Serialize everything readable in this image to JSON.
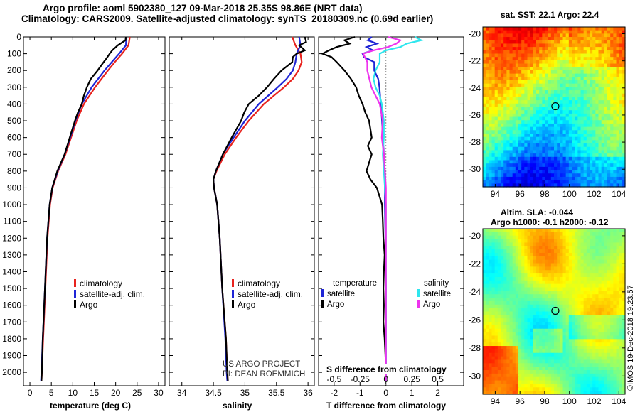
{
  "title": {
    "line1": "Argo profile: aoml 5902380_127 09-Mar-2018 25.35S 98.86E (NRT data)",
    "line2": "Climatology: CARS2009. Satellite-adjusted climatology: synTS_20180309.nc (0.69d earlier)"
  },
  "colors": {
    "climatology": "#e8231e",
    "satellite": "#1f25d6",
    "argo": "#000000",
    "sal_satellite": "#2ee6ee",
    "sal_argo": "#ee33ee"
  },
  "chart_data": [
    {
      "type": "line",
      "name": "temperature",
      "xlabel": "temperature (deg C)",
      "xlim": [
        -1.5,
        31.5
      ],
      "xticks": [
        0,
        5,
        10,
        15,
        20,
        25,
        30
      ],
      "ylim": [
        0,
        2080
      ],
      "yticks": [
        0,
        100,
        200,
        300,
        400,
        500,
        600,
        700,
        800,
        900,
        1000,
        1100,
        1200,
        1300,
        1400,
        1500,
        1600,
        1700,
        1800,
        1900,
        2000
      ],
      "legend": [
        "climatology",
        "satellite-adj. clim.",
        "Argo"
      ],
      "series": [
        {
          "name": "climatology",
          "depth": [
            0,
            50,
            100,
            150,
            200,
            300,
            400,
            500,
            600,
            700,
            800,
            900,
            1000,
            1200,
            1500,
            1800,
            2000,
            2050
          ],
          "values": [
            23.3,
            23.0,
            21.5,
            19.8,
            18.2,
            15.2,
            12.6,
            10.9,
            9.6,
            8.3,
            6.6,
            5.3,
            4.7,
            4.1,
            3.6,
            3.1,
            2.8,
            2.7
          ]
        },
        {
          "name": "satellite-adj. clim.",
          "depth": [
            0,
            50,
            100,
            150,
            200,
            300,
            400,
            500,
            600,
            700,
            800,
            900,
            1000,
            1200,
            1500,
            1800,
            2000,
            2050
          ],
          "values": [
            22.5,
            22.4,
            20.8,
            19.1,
            17.4,
            14.4,
            12.1,
            10.6,
            9.4,
            8.1,
            6.5,
            5.2,
            4.6,
            4.0,
            3.5,
            3.0,
            2.7,
            2.6
          ]
        },
        {
          "name": "Argo",
          "depth": [
            0,
            20,
            50,
            80,
            100,
            130,
            160,
            200,
            250,
            300,
            350,
            400,
            450,
            500,
            600,
            700,
            800,
            900,
            1000,
            1200,
            1500,
            1800,
            2000,
            2050
          ],
          "values": [
            22.4,
            22.3,
            20.5,
            19.2,
            18.6,
            17.8,
            16.9,
            15.8,
            14.2,
            13.3,
            12.6,
            12.1,
            11.2,
            10.5,
            9.3,
            8.1,
            6.4,
            5.2,
            4.6,
            4.0,
            3.5,
            3.0,
            2.8,
            2.7
          ]
        }
      ]
    },
    {
      "type": "line",
      "name": "salinity",
      "xlabel": "salinity",
      "xlim": [
        33.8,
        36.1
      ],
      "xticks": [
        34,
        34.5,
        35,
        35.5,
        36
      ],
      "xtick_labels": [
        "34",
        "34.5",
        "35",
        "35.5",
        "36"
      ],
      "ylim": [
        0,
        2080
      ],
      "legend": [
        "climatology",
        "satellite-adj. clim.",
        "Argo"
      ],
      "series": [
        {
          "name": "climatology",
          "depth": [
            0,
            50,
            100,
            150,
            200,
            250,
            300,
            400,
            500,
            600,
            700,
            800,
            850,
            900,
            1000,
            1200,
            1500,
            1800,
            2000,
            2050
          ],
          "values": [
            35.75,
            35.8,
            35.88,
            35.9,
            35.85,
            35.76,
            35.62,
            35.3,
            35.06,
            34.86,
            34.68,
            34.55,
            34.5,
            34.51,
            34.56,
            34.6,
            34.64,
            34.7,
            34.72,
            34.73
          ]
        },
        {
          "name": "satellite-adj. clim.",
          "depth": [
            0,
            50,
            100,
            150,
            200,
            250,
            300,
            400,
            500,
            600,
            700,
            800,
            850,
            900,
            1000,
            1200,
            1500,
            1800,
            2000,
            2050
          ],
          "values": [
            35.86,
            35.88,
            35.82,
            35.8,
            35.76,
            35.66,
            35.52,
            35.22,
            35.0,
            34.82,
            34.65,
            34.54,
            34.5,
            34.51,
            34.56,
            34.6,
            34.64,
            34.69,
            34.71,
            34.72
          ]
        },
        {
          "name": "Argo",
          "depth": [
            0,
            30,
            50,
            80,
            100,
            120,
            150,
            200,
            250,
            300,
            350,
            400,
            450,
            500,
            600,
            700,
            800,
            850,
            900,
            1000,
            1200,
            1500,
            1800,
            2000,
            2050
          ],
          "values": [
            35.95,
            35.97,
            35.86,
            35.95,
            35.82,
            35.76,
            35.75,
            35.58,
            35.46,
            35.35,
            35.22,
            35.06,
            34.99,
            34.94,
            34.79,
            34.65,
            34.54,
            34.5,
            34.51,
            34.56,
            34.6,
            34.64,
            34.7,
            34.72,
            34.73
          ]
        }
      ]
    },
    {
      "type": "line",
      "name": "difference from climatology",
      "xlabel": "T difference from climatology",
      "xlabel_top": "S difference from climatology",
      "xlim": [
        -2.6,
        3.0
      ],
      "xticks": [
        -2,
        -1,
        0,
        1,
        2
      ],
      "s_xticks": [
        -0.5,
        -0.25,
        0,
        0.25,
        0.5
      ],
      "s_tick_labels": [
        "-0.5",
        "-0.25",
        "0",
        "0.25",
        "0.5"
      ],
      "ylim": [
        0,
        2080
      ],
      "legend_temperature": {
        "heading": "temperature",
        "items": [
          "satellite",
          "Argo"
        ]
      },
      "legend_salinity": {
        "heading": "salinity",
        "items": [
          "satellite",
          "Argo"
        ]
      },
      "series": [
        {
          "name": "T satellite",
          "depth": [
            0,
            20,
            40,
            60,
            80,
            100,
            120,
            150,
            200,
            250,
            300,
            400,
            500,
            600,
            700,
            800,
            900,
            1000,
            1200,
            1500,
            1800,
            2000,
            2050
          ],
          "values": [
            -0.55,
            -0.7,
            -0.35,
            -0.75,
            -0.5,
            -0.9,
            -0.85,
            -0.45,
            -0.45,
            -0.3,
            -0.25,
            -0.2,
            -0.15,
            -0.12,
            -0.08,
            -0.05,
            -0.04,
            -0.04,
            -0.02,
            0.0,
            0.0,
            0.0,
            0.0
          ]
        },
        {
          "name": "T Argo",
          "depth": [
            0,
            20,
            40,
            60,
            80,
            100,
            120,
            150,
            200,
            250,
            300,
            350,
            400,
            450,
            500,
            550,
            600,
            650,
            700,
            750,
            800,
            850,
            900,
            1000,
            1100,
            1200,
            1300,
            1400,
            1500,
            1600,
            1700,
            1800,
            1900,
            2000,
            2050
          ],
          "values": [
            -1.2,
            -1.6,
            -1.4,
            -1.9,
            -2.2,
            -2.45,
            -2.1,
            -1.9,
            -1.6,
            -1.35,
            -1.15,
            -1.05,
            -0.9,
            -0.8,
            -0.65,
            -0.6,
            -0.55,
            -0.7,
            -0.55,
            -0.65,
            -0.75,
            -0.6,
            -0.35,
            -0.15,
            -0.12,
            -0.1,
            -0.05,
            -0.08,
            -0.1,
            -0.08,
            -0.1,
            -0.05,
            -0.02,
            0.0,
            0.0
          ]
        },
        {
          "name": "S satellite",
          "depth": [
            0,
            20,
            40,
            60,
            80,
            100,
            150,
            200,
            250,
            300,
            350,
            400,
            500,
            600,
            700,
            800,
            900,
            1000,
            1200,
            1500,
            1800,
            2000,
            2050
          ],
          "values": [
            0.28,
            0.34,
            0.2,
            0.14,
            0.0,
            -0.06,
            -0.06,
            -0.1,
            -0.12,
            -0.1,
            -0.06,
            -0.04,
            -0.02,
            -0.02,
            -0.03,
            -0.02,
            -0.01,
            0.0,
            0.0,
            0.0,
            0.0,
            0.0,
            0.0
          ]
        },
        {
          "name": "S Argo",
          "depth": [
            0,
            20,
            40,
            60,
            80,
            100,
            150,
            200,
            250,
            300,
            350,
            400,
            500,
            600,
            700,
            800,
            900,
            1000,
            1200,
            1500,
            1800,
            2000,
            2050
          ],
          "values": [
            0.02,
            0.14,
            0.1,
            0.02,
            -0.12,
            -0.22,
            -0.18,
            -0.18,
            -0.16,
            -0.14,
            -0.1,
            -0.06,
            -0.03,
            -0.04,
            -0.02,
            -0.01,
            0.0,
            0.0,
            0.0,
            0.0,
            0.0,
            0.0,
            0.0
          ]
        }
      ]
    },
    {
      "type": "heatmap",
      "name": "sat. SST",
      "title": "sat. SST: 22.1  Argo: 22.4",
      "xlim": [
        93.0,
        104.5
      ],
      "ylim": [
        -31.3,
        -19.5
      ],
      "xticks": [
        94,
        96,
        98,
        100,
        102,
        104
      ],
      "yticks": [
        -20,
        -22,
        -24,
        -26,
        -28,
        -30
      ],
      "marker": [
        98.86,
        -25.35
      ]
    },
    {
      "type": "heatmap",
      "name": "Altim. SLA",
      "title": "Altim. SLA: -0.044",
      "subtitle": "Argo h1000: -0.1  h2000: -0.12",
      "xlim": [
        93.0,
        104.5
      ],
      "ylim": [
        -31.3,
        -19.5
      ],
      "xticks": [
        94,
        96,
        98,
        100,
        102,
        104
      ],
      "yticks": [
        -20,
        -22,
        -24,
        -26,
        -28,
        -30
      ],
      "marker": [
        98.86,
        -25.35
      ]
    }
  ],
  "credits": {
    "project": "US ARGO PROJECT",
    "pi": "PI: DEAN ROEMMICH",
    "imos": "©IMOS 19-Dec-2018 19:23:57"
  }
}
